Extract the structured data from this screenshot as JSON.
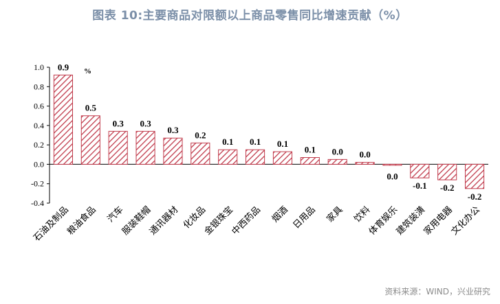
{
  "title": "图表 10:主要商品对限额以上商品零售同比增速贡献（%）",
  "source": "资料来源：WIND，兴业研究",
  "colors": {
    "bar_stroke": "#c0394a",
    "hatch": "#c0394a",
    "title": "#7b8fa8"
  },
  "chart_data": {
    "type": "bar",
    "unit_label": "%",
    "categories": [
      "石油及制品",
      "粮油食品",
      "汽车",
      "服装鞋帽",
      "通讯器材",
      "化妆品",
      "金银珠宝",
      "中西药品",
      "烟酒",
      "日用品",
      "家具",
      "饮料",
      "体育娱乐",
      "建筑装潢",
      "家用电器",
      "文化办公"
    ],
    "values": [
      0.92,
      0.5,
      0.34,
      0.34,
      0.27,
      0.22,
      0.15,
      0.15,
      0.13,
      0.07,
      0.05,
      0.02,
      -0.01,
      -0.14,
      -0.16,
      -0.25
    ],
    "data_labels": [
      "0.9",
      "0.5",
      "0.3",
      "0.3",
      "0.3",
      "0.2",
      "0.1",
      "0.1",
      "0.1",
      "0.1",
      "0.0",
      "0.0",
      "0.0",
      "-0.1",
      "-0.2",
      "-0.2"
    ],
    "yticks": [
      "1.0",
      "0.8",
      "0.6",
      "0.4",
      "0.2",
      "0.0",
      "-0.2",
      "-0.4"
    ],
    "ylim": [
      -0.4,
      1.0
    ],
    "grid": false,
    "legend": "none"
  }
}
